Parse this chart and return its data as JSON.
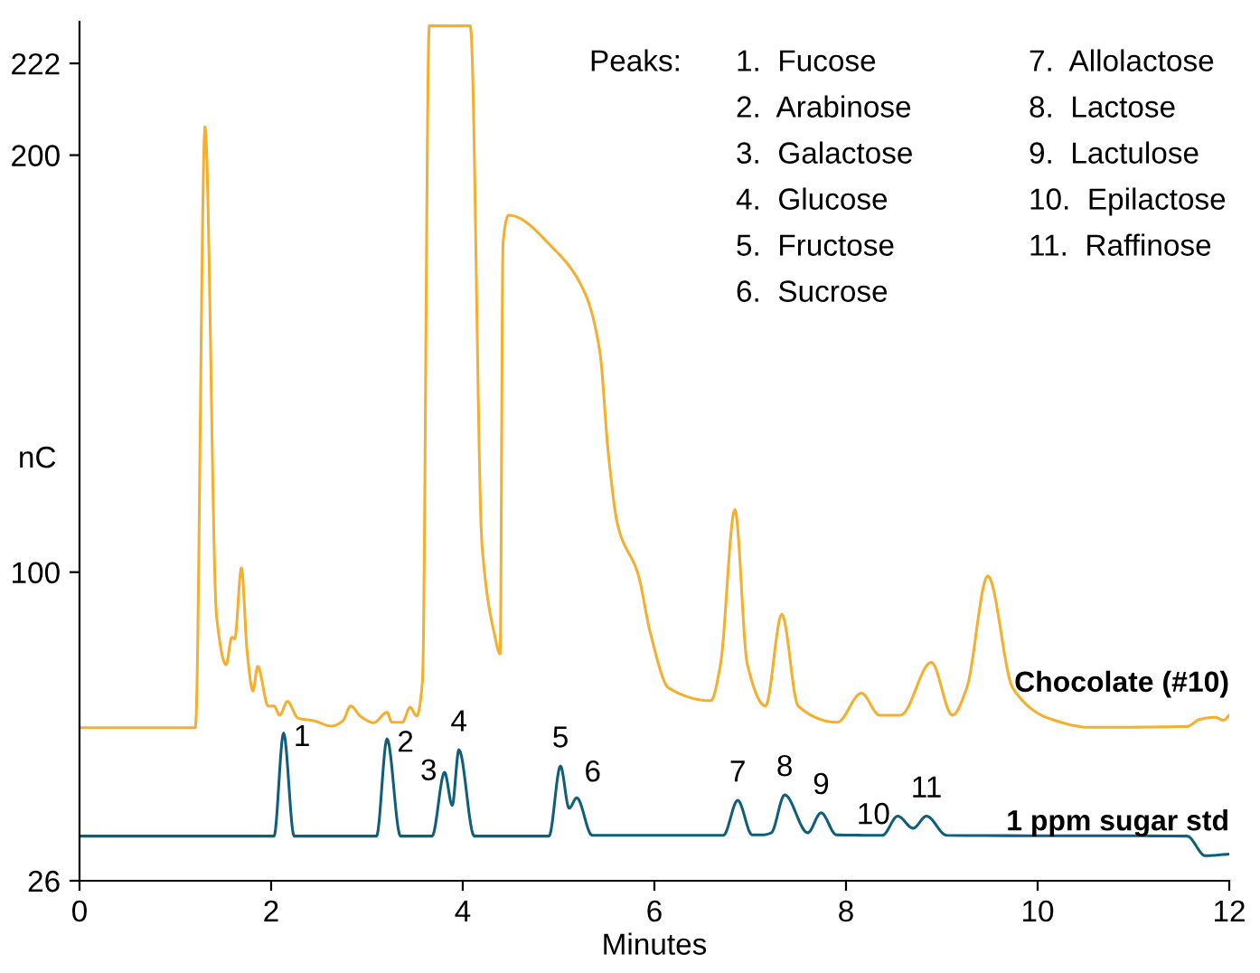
{
  "chart_data": {
    "type": "line",
    "xlabel": "Minutes",
    "ylabel": "nC",
    "xlim": [
      0,
      12
    ],
    "xticks": [
      0,
      2,
      4,
      6,
      8,
      10,
      12
    ],
    "ylim": [
      26,
      232
    ],
    "yticks": [
      26,
      100,
      200,
      222
    ],
    "grid": false,
    "legend": false,
    "marker": "none",
    "line_style": "solid",
    "series": [
      {
        "name": "Chocolate (#10)",
        "color": "#f6ae2d",
        "x": [
          0,
          1.21,
          1.31,
          1.43,
          1.53,
          1.59,
          1.62,
          1.69,
          1.75,
          1.81,
          1.86,
          1.97,
          2.03,
          2.09,
          2.17,
          2.28,
          2.44,
          2.63,
          2.75,
          2.83,
          2.93,
          3.07,
          3.21,
          3.26,
          3.37,
          3.45,
          3.52,
          3.58,
          3.65,
          4.08,
          4.2,
          4.33,
          4.39,
          4.42,
          4.48,
          4.96,
          5.27,
          5.43,
          5.52,
          5.62,
          5.83,
          5.96,
          6.15,
          6.59,
          6.69,
          6.84,
          6.97,
          7.16,
          7.33,
          7.5,
          7.91,
          8.16,
          8.35,
          8.57,
          8.89,
          9.11,
          9.26,
          9.48,
          9.74,
          10.11,
          10.55,
          11.56,
          11.69,
          11.85,
          11.94,
          12.0
        ],
        "values": [
          62.7,
          62.7,
          206.8,
          89.5,
          77.8,
          84.4,
          84.0,
          101,
          80.8,
          71.5,
          77.4,
          67.9,
          67.9,
          65.7,
          69,
          65,
          64.4,
          63.1,
          64.4,
          67.9,
          65.5,
          63.9,
          66.4,
          64,
          64,
          67.6,
          65.5,
          74,
          231,
          231,
          106.7,
          85.2,
          80.4,
          178.8,
          185.6,
          177.3,
          167.2,
          153,
          128.3,
          111,
          99.5,
          85.2,
          72.2,
          69.2,
          77.9,
          115,
          77.9,
          67.9,
          89.9,
          67.9,
          64,
          71,
          65.7,
          65.7,
          78.4,
          65.7,
          72.2,
          99.1,
          72.2,
          65,
          62.8,
          63,
          64.7,
          65.2,
          64.5,
          65.7
        ]
      },
      {
        "name": "1 ppm sugar std",
        "color": "#0f5f7a",
        "x": [
          0,
          2.03,
          2.13,
          2.24,
          3.1,
          3.21,
          3.35,
          3.68,
          3.81,
          3.89,
          3.96,
          4.12,
          4.9,
          5.02,
          5.11,
          5.19,
          5.35,
          6.72,
          6.87,
          7.02,
          7.13,
          7.22,
          7.36,
          7.6,
          7.74,
          7.9,
          8.38,
          8.54,
          8.7,
          8.84,
          9.05,
          11.56,
          11.75,
          12.0
        ],
        "values": [
          36.7,
          36.7,
          61.4,
          36.7,
          36.7,
          60,
          36.7,
          36.7,
          52,
          44.1,
          57.4,
          36.7,
          36.7,
          53.5,
          43.4,
          45.9,
          36.9,
          36.9,
          45.3,
          37,
          37,
          37.5,
          46.6,
          37.5,
          42.3,
          37,
          36.9,
          41.5,
          38.6,
          41.5,
          36.9,
          36.7,
          32,
          32.4
        ]
      }
    ],
    "annotations": [
      {
        "text": "1",
        "x": 2.13,
        "y": 61.4
      },
      {
        "text": "2",
        "x": 3.21,
        "y": 60
      },
      {
        "text": "3",
        "x": 3.81,
        "y": 52
      },
      {
        "text": "4",
        "x": 3.96,
        "y": 57.4
      },
      {
        "text": "5",
        "x": 5.02,
        "y": 53.5
      },
      {
        "text": "6",
        "x": 5.19,
        "y": 45.9
      },
      {
        "text": "7",
        "x": 6.87,
        "y": 45.3
      },
      {
        "text": "8",
        "x": 7.36,
        "y": 46.6
      },
      {
        "text": "9",
        "x": 7.74,
        "y": 42.3
      },
      {
        "text": "10",
        "x": 8.54,
        "y": 41.5
      },
      {
        "text": "11",
        "x": 8.84,
        "y": 41.5
      },
      "Peaks:",
      "1.  Fucose",
      "2.  Arabinose",
      "3.  Galactose",
      "4.  Glucose",
      "5.  Fructose",
      "6.  Sucrose",
      "7.  Allolactose",
      "8.  Lactose",
      "9.  Lactulose",
      "10.  Epilactose",
      "11.  Raffinose"
    ]
  }
}
